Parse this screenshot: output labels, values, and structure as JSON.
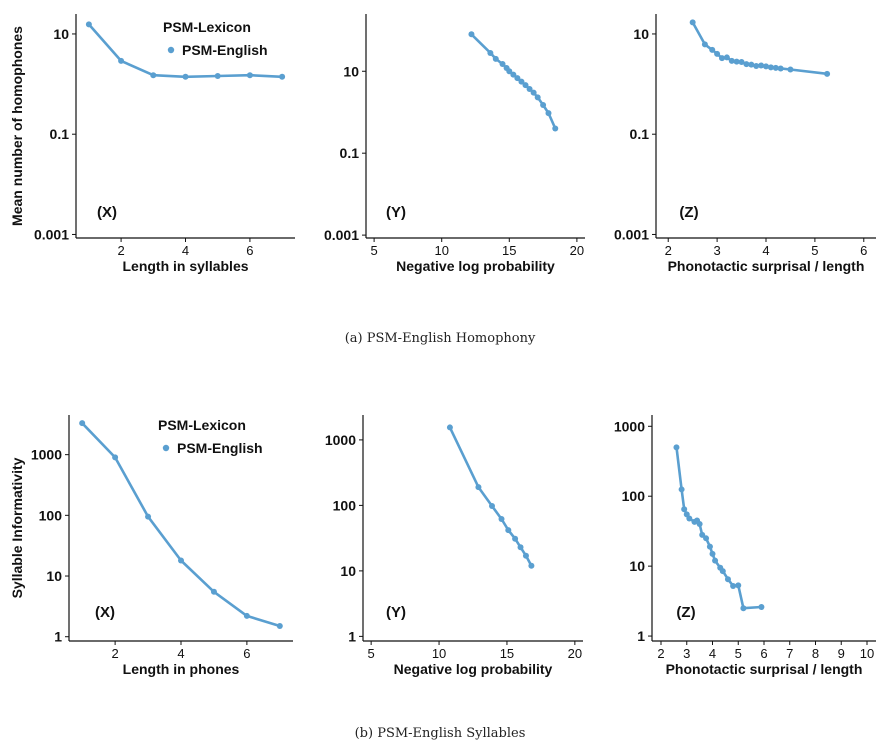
{
  "captions": {
    "a": "(a) PSM-English Homophony",
    "b": "(b) PSM-English Syllables"
  },
  "legend": {
    "title": "PSM-Lexicon",
    "entry": "PSM-English",
    "color": "#5a9fd0",
    "position": "top-right"
  },
  "chart_data": [
    {
      "id": "a-x",
      "type": "line",
      "panel_label": "(X)",
      "xlabel": "Length in syllables",
      "ylabel": "Mean number of homophones",
      "y_scale": "log",
      "xlim": [
        0.6,
        7.4
      ],
      "ylim": [
        0.00085,
        25
      ],
      "xticks": [
        2,
        4,
        6
      ],
      "yticks": [
        10,
        0.1,
        0.001
      ],
      "ytick_labels": [
        "10",
        "0.1",
        "0.001"
      ],
      "legend": true,
      "series": [
        {
          "name": "PSM-English",
          "color": "#5a9fd0",
          "x": [
            1,
            2,
            3,
            4,
            5,
            6,
            7
          ],
          "y": [
            15.5,
            2.9,
            1.5,
            1.4,
            1.45,
            1.5,
            1.4
          ]
        }
      ]
    },
    {
      "id": "a-y",
      "type": "line",
      "panel_label": "(Y)",
      "xlabel": "Negative log probability",
      "ylabel": "",
      "y_scale": "log",
      "xlim": [
        4.4,
        20.6
      ],
      "ylim": [
        0.00085,
        250
      ],
      "xticks": [
        5,
        10,
        15,
        20
      ],
      "yticks": [
        10,
        0.1,
        0.001
      ],
      "ytick_labels": [
        "10",
        "0.1",
        "0.001"
      ],
      "legend": false,
      "series": [
        {
          "name": "PSM-English",
          "color": "#5a9fd0",
          "x": [
            12.2,
            13.6,
            14.0,
            14.5,
            14.8,
            15.0,
            15.3,
            15.6,
            15.9,
            16.2,
            16.5,
            16.8,
            17.1,
            17.5,
            17.9,
            18.4
          ],
          "y": [
            80,
            28,
            20,
            15,
            12,
            10,
            8.3,
            6.8,
            5.6,
            4.6,
            3.7,
            3.0,
            2.3,
            1.5,
            0.95,
            0.4
          ]
        }
      ]
    },
    {
      "id": "a-z",
      "type": "line",
      "panel_label": "(Z)",
      "xlabel": "Phonotactic surprisal / length",
      "ylabel": "",
      "y_scale": "log",
      "xlim": [
        1.75,
        6.25
      ],
      "ylim": [
        0.00085,
        25
      ],
      "xticks": [
        2,
        3,
        4,
        5,
        6
      ],
      "yticks": [
        10,
        0.1,
        0.001
      ],
      "ytick_labels": [
        "10",
        "0.1",
        "0.001"
      ],
      "legend": false,
      "series": [
        {
          "name": "PSM-English",
          "color": "#5a9fd0",
          "x": [
            2.5,
            2.75,
            2.9,
            3.0,
            3.1,
            3.2,
            3.3,
            3.4,
            3.5,
            3.6,
            3.7,
            3.8,
            3.9,
            4.0,
            4.1,
            4.2,
            4.3,
            4.5,
            5.25
          ],
          "y": [
            17,
            6.2,
            4.8,
            4.0,
            3.3,
            3.4,
            2.9,
            2.8,
            2.75,
            2.5,
            2.45,
            2.3,
            2.35,
            2.25,
            2.15,
            2.1,
            2.05,
            1.95,
            1.6
          ]
        }
      ]
    },
    {
      "id": "b-x",
      "type": "line",
      "panel_label": "(X)",
      "xlabel": "Length in phones",
      "ylabel": "Syllable Informativity",
      "y_scale": "log",
      "xlim": [
        0.6,
        7.4
      ],
      "ylim": [
        0.85,
        4500
      ],
      "xticks": [
        2,
        4,
        6
      ],
      "yticks": [
        1,
        10,
        100,
        1000
      ],
      "ytick_labels": [
        "1",
        "10",
        "100",
        "1000"
      ],
      "legend": true,
      "series": [
        {
          "name": "PSM-English",
          "color": "#5a9fd0",
          "x": [
            1,
            2,
            3,
            4,
            5,
            6,
            7
          ],
          "y": [
            3300,
            900,
            95,
            18,
            5.5,
            2.2,
            1.5
          ]
        }
      ]
    },
    {
      "id": "b-y",
      "type": "line",
      "panel_label": "(Y)",
      "xlabel": "Negative log probability",
      "ylabel": "",
      "y_scale": "log",
      "xlim": [
        4.4,
        20.6
      ],
      "ylim": [
        0.85,
        2400
      ],
      "xticks": [
        5,
        10,
        15,
        20
      ],
      "yticks": [
        1,
        10,
        100,
        1000
      ],
      "ytick_labels": [
        "1",
        "10",
        "100",
        "1000"
      ],
      "legend": false,
      "series": [
        {
          "name": "PSM-English",
          "color": "#5a9fd0",
          "x": [
            10.8,
            12.9,
            13.9,
            14.6,
            15.1,
            15.6,
            16.0,
            16.4,
            16.8
          ],
          "y": [
            1550,
            190,
            98,
            62,
            42,
            31,
            23,
            17,
            12
          ]
        }
      ]
    },
    {
      "id": "b-z",
      "type": "line",
      "panel_label": "(Z)",
      "xlabel": "Phonotactic surprisal / length",
      "ylabel": "",
      "y_scale": "log",
      "xlim": [
        1.65,
        10.35
      ],
      "ylim": [
        0.85,
        1450
      ],
      "xticks": [
        2,
        3,
        4,
        5,
        6,
        7,
        8,
        9,
        10
      ],
      "yticks": [
        1,
        10,
        100,
        1000
      ],
      "ytick_labels": [
        "1",
        "10",
        "100",
        "1000"
      ],
      "legend": false,
      "series": [
        {
          "name": "PSM-English",
          "color": "#5a9fd0",
          "x": [
            2.6,
            2.8,
            2.9,
            3.0,
            3.1,
            3.3,
            3.4,
            3.5,
            3.6,
            3.75,
            3.9,
            4.0,
            4.1,
            4.3,
            4.4,
            4.6,
            4.8,
            5.0,
            5.2,
            5.9
          ],
          "y": [
            500,
            125,
            65,
            55,
            48,
            43,
            45,
            40,
            28,
            25,
            19,
            15,
            12,
            9.5,
            8.5,
            6.5,
            5.2,
            5.3,
            2.5,
            2.6
          ]
        }
      ]
    }
  ]
}
